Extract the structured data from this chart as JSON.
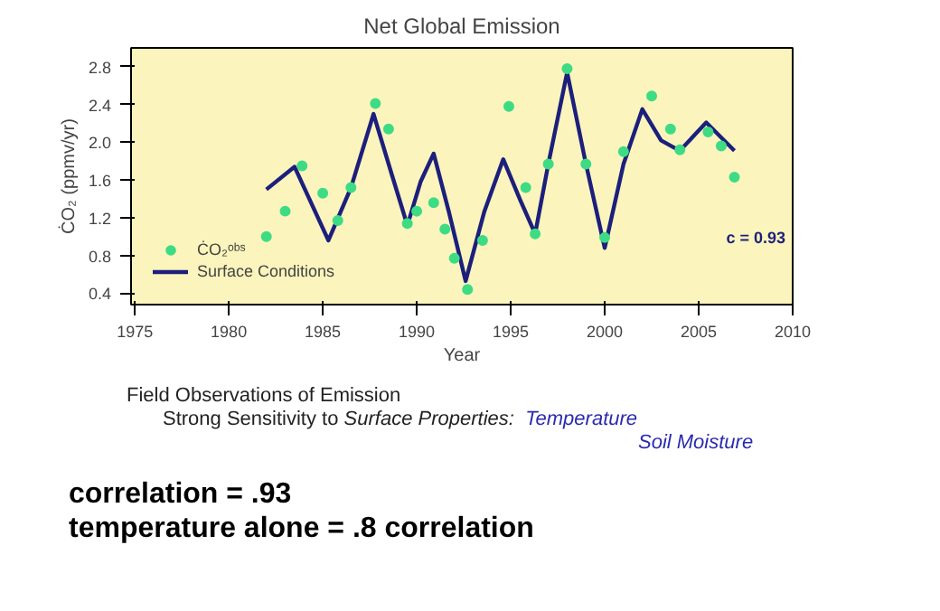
{
  "chart_data": {
    "type": "line",
    "title": "Net Global Emission",
    "xlabel": "Year",
    "ylabel": "ĊO₂ (ppmv/yr)",
    "xlim": [
      1974.8,
      2010
    ],
    "xticks": [
      1975,
      1980,
      1985,
      1990,
      1995,
      2000,
      2005,
      2010
    ],
    "ylim": [
      0.28,
      3.0
    ],
    "yticks": [
      0.4,
      0.8,
      1.2,
      1.6,
      {
        "value": 2.0,
        "label": "2.0"
      },
      2.4,
      2.8
    ],
    "legend": "bottom left",
    "series": [
      {
        "name": "ĊO₂ᵒᵇˢ",
        "type": "scatter",
        "marker": "circle",
        "color": "#3ddc84",
        "x": [
          1982,
          1983,
          1983.9,
          1985,
          1985.8,
          1986.5,
          1987.8,
          1988.5,
          1989.5,
          1990,
          1990.9,
          1991.5,
          1992,
          1992.7,
          1993.5,
          1994.9,
          1995.8,
          1996.3,
          1997,
          1998,
          1999,
          2000,
          2001,
          2002.5,
          2003.5,
          2004,
          2005.5,
          2006.2,
          2006.9
        ],
        "values": [
          1.0,
          1.27,
          1.75,
          1.46,
          1.17,
          1.52,
          2.41,
          2.14,
          1.14,
          1.27,
          1.36,
          1.08,
          0.77,
          0.44,
          0.96,
          2.38,
          1.52,
          1.03,
          1.77,
          2.78,
          1.77,
          0.99,
          1.9,
          2.49,
          2.14,
          1.92,
          2.11,
          1.96,
          1.63
        ]
      },
      {
        "name": "Surface Conditions",
        "line_style": "solid",
        "color": "#1c1f7c",
        "x": [
          1982,
          1983.5,
          1985.3,
          1986.5,
          1987.7,
          1988.7,
          1989.5,
          1990.2,
          1990.9,
          1991.7,
          1992.6,
          1993.6,
          1994.6,
          1995.5,
          1996.3,
          1997,
          1998,
          1999,
          2000,
          2001,
          2002,
          2003,
          2004,
          2005.4,
          2006.9
        ],
        "values": [
          1.5,
          1.74,
          0.96,
          1.52,
          2.3,
          1.64,
          1.12,
          1.58,
          1.88,
          1.27,
          0.53,
          1.27,
          1.82,
          1.39,
          1.03,
          1.77,
          2.74,
          1.77,
          0.88,
          1.77,
          2.35,
          2.02,
          1.91,
          2.21,
          1.91
        ]
      }
    ],
    "annotations": [
      "c = 0.93",
      "Field Observations of Emission",
      "Strong Sensitivity to",
      "Surface Properties:",
      "Temperature",
      "Soil Moisture",
      "correlation = .93",
      "temperature alone = .8 correlation"
    ]
  }
}
